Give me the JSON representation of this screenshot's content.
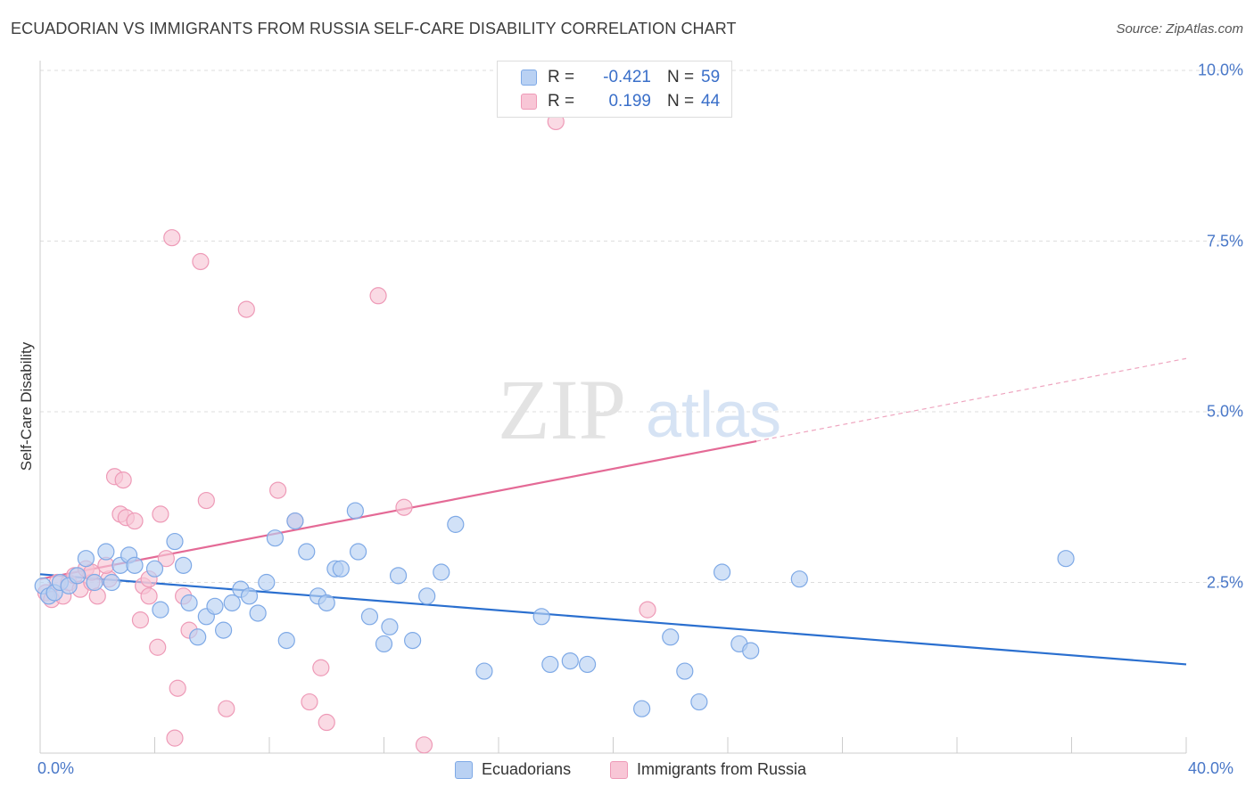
{
  "title": "ECUADORIAN VS IMMIGRANTS FROM RUSSIA SELF-CARE DISABILITY CORRELATION CHART",
  "source": "Source: ZipAtlas.com",
  "watermark": {
    "zip": "ZIP",
    "atlas": "atlas"
  },
  "colors": {
    "blue_fill": "#b9d1f3",
    "blue_stroke": "#7ea9e6",
    "blue_line": "#2a6fcf",
    "pink_fill": "#f8c6d6",
    "pink_stroke": "#ee9ab7",
    "pink_line": "#e46a96",
    "axis_text": "#4a78c8",
    "grid": "#dddddd"
  },
  "legend": {
    "r_label": "R =",
    "n_label": "N =",
    "rows": [
      {
        "r": "-0.421",
        "n": "59",
        "color": "blue"
      },
      {
        "r": "0.199",
        "n": "44",
        "color": "pink"
      }
    ]
  },
  "bottom_legend": [
    {
      "label": "Ecuadorians",
      "color": "blue"
    },
    {
      "label": "Immigrants from Russia",
      "color": "pink"
    }
  ],
  "chart_data": {
    "type": "scatter",
    "xlabel": "",
    "ylabel": "Self-Care Disability",
    "xlim": [
      0,
      40
    ],
    "ylim": [
      0,
      10
    ],
    "x_tick_labels": [
      "0.0%",
      "40.0%"
    ],
    "y_ticks": [
      2.5,
      5.0,
      7.5,
      10.0
    ],
    "y_tick_labels": [
      "2.5%",
      "5.0%",
      "7.5%",
      "10.0%"
    ],
    "grid": true,
    "legend_position": "top-center",
    "series": [
      {
        "name": "Ecuadorians",
        "color": "blue",
        "trend": {
          "x0": 0,
          "y0": 2.62,
          "x1": 40,
          "y1": 1.3,
          "dashed_from": null
        },
        "points": [
          [
            0.1,
            2.45
          ],
          [
            0.3,
            2.3
          ],
          [
            0.5,
            2.35
          ],
          [
            0.7,
            2.5
          ],
          [
            1.0,
            2.45
          ],
          [
            1.3,
            2.6
          ],
          [
            1.6,
            2.85
          ],
          [
            1.9,
            2.5
          ],
          [
            2.3,
            2.95
          ],
          [
            2.5,
            2.5
          ],
          [
            2.8,
            2.75
          ],
          [
            3.1,
            2.9
          ],
          [
            3.3,
            2.75
          ],
          [
            4.0,
            2.7
          ],
          [
            4.2,
            2.1
          ],
          [
            4.7,
            3.1
          ],
          [
            5.0,
            2.75
          ],
          [
            5.2,
            2.2
          ],
          [
            5.5,
            1.7
          ],
          [
            5.8,
            2.0
          ],
          [
            6.1,
            2.15
          ],
          [
            6.4,
            1.8
          ],
          [
            6.7,
            2.2
          ],
          [
            7.0,
            2.4
          ],
          [
            7.3,
            2.3
          ],
          [
            7.6,
            2.05
          ],
          [
            7.9,
            2.5
          ],
          [
            8.2,
            3.15
          ],
          [
            8.6,
            1.65
          ],
          [
            8.9,
            3.4
          ],
          [
            9.3,
            2.95
          ],
          [
            9.7,
            2.3
          ],
          [
            10.0,
            2.2
          ],
          [
            10.3,
            2.7
          ],
          [
            10.5,
            2.7
          ],
          [
            11.0,
            3.55
          ],
          [
            11.1,
            2.95
          ],
          [
            11.5,
            2.0
          ],
          [
            12.0,
            1.6
          ],
          [
            12.2,
            1.85
          ],
          [
            12.5,
            2.6
          ],
          [
            13.0,
            1.65
          ],
          [
            13.5,
            2.3
          ],
          [
            14.0,
            2.65
          ],
          [
            14.5,
            3.35
          ],
          [
            15.5,
            1.2
          ],
          [
            17.5,
            2.0
          ],
          [
            17.8,
            1.3
          ],
          [
            18.5,
            1.35
          ],
          [
            19.1,
            1.3
          ],
          [
            21.0,
            0.65
          ],
          [
            22.0,
            1.7
          ],
          [
            22.5,
            1.2
          ],
          [
            23.0,
            0.75
          ],
          [
            23.8,
            2.65
          ],
          [
            24.4,
            1.6
          ],
          [
            24.8,
            1.5
          ],
          [
            26.5,
            2.55
          ],
          [
            35.8,
            2.85
          ]
        ]
      },
      {
        "name": "Immigrants from Russia",
        "color": "pink",
        "trend": {
          "x0": 0,
          "y0": 2.55,
          "x1": 40,
          "y1": 5.78,
          "dashed_from": 25
        },
        "points": [
          [
            0.2,
            2.35
          ],
          [
            0.4,
            2.25
          ],
          [
            0.6,
            2.5
          ],
          [
            0.8,
            2.3
          ],
          [
            1.0,
            2.5
          ],
          [
            1.2,
            2.6
          ],
          [
            1.4,
            2.4
          ],
          [
            1.6,
            2.7
          ],
          [
            1.8,
            2.5
          ],
          [
            2.0,
            2.3
          ],
          [
            2.4,
            2.55
          ],
          [
            2.3,
            2.75
          ],
          [
            2.8,
            3.5
          ],
          [
            2.6,
            4.05
          ],
          [
            3.0,
            3.45
          ],
          [
            2.9,
            4.0
          ],
          [
            3.3,
            3.4
          ],
          [
            3.6,
            2.45
          ],
          [
            3.8,
            2.55
          ],
          [
            3.8,
            2.3
          ],
          [
            3.5,
            1.95
          ],
          [
            4.1,
            1.55
          ],
          [
            4.2,
            3.5
          ],
          [
            4.4,
            2.85
          ],
          [
            4.6,
            7.55
          ],
          [
            4.7,
            0.22
          ],
          [
            4.8,
            0.95
          ],
          [
            5.2,
            1.8
          ],
          [
            5.0,
            2.3
          ],
          [
            5.6,
            7.2
          ],
          [
            5.8,
            3.7
          ],
          [
            6.5,
            0.65
          ],
          [
            7.2,
            6.5
          ],
          [
            8.3,
            3.85
          ],
          [
            8.9,
            3.4
          ],
          [
            9.4,
            0.75
          ],
          [
            9.8,
            1.25
          ],
          [
            10.0,
            0.45
          ],
          [
            11.8,
            6.7
          ],
          [
            12.7,
            3.6
          ],
          [
            13.4,
            0.12
          ],
          [
            18.0,
            9.25
          ],
          [
            21.2,
            2.1
          ],
          [
            1.8,
            2.65
          ]
        ]
      }
    ]
  }
}
